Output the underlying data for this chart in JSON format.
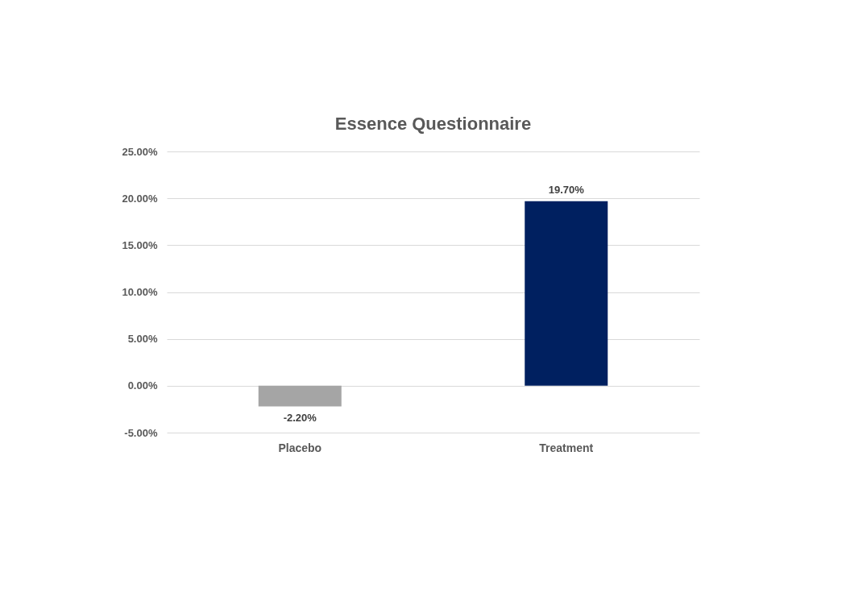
{
  "chart_data": {
    "type": "bar",
    "title": "Essence Questionnaire",
    "categories": [
      "Placebo",
      "Treatment"
    ],
    "values": [
      -2.2,
      19.7
    ],
    "colors": [
      "#a5a5a5",
      "#002060"
    ],
    "value_labels": [
      "-2.20%",
      "19.70%"
    ],
    "ylim": [
      -5,
      25
    ],
    "yticks": [
      {
        "value": -5,
        "label": "-5.00%"
      },
      {
        "value": 0,
        "label": "0.00%"
      },
      {
        "value": 5,
        "label": "5.00%"
      },
      {
        "value": 10,
        "label": "10.00%"
      },
      {
        "value": 15,
        "label": "15.00%"
      },
      {
        "value": 20,
        "label": "20.00%"
      },
      {
        "value": 25,
        "label": "25.00%"
      }
    ],
    "grid": "y"
  }
}
